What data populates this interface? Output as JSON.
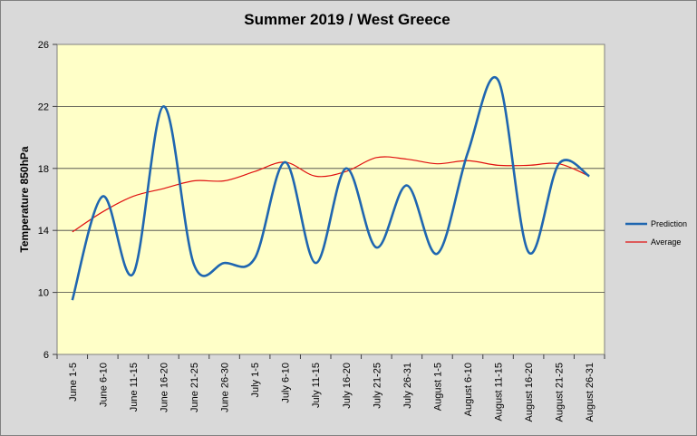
{
  "chart_data": {
    "type": "line",
    "title": "Summer 2019 / West Greece",
    "xlabel": "",
    "ylabel": "Temperature 850hPa",
    "categories": [
      "June 1-5",
      "June 6-10",
      "June 11-15",
      "June 16-20",
      "June 21-25",
      "June 26-30",
      "July 1-5",
      "July 6-10",
      "July 11-15",
      "July 16-20",
      "July 21-25",
      "July 26-31",
      "August 1-5",
      "August 6-10",
      "August 11-15",
      "August 16-20",
      "August 21-25",
      "August 26-31"
    ],
    "series": [
      {
        "name": "Prediction",
        "color": "#1f66b0",
        "values": [
          9.5,
          16.2,
          11.2,
          22.0,
          11.8,
          11.9,
          12.2,
          18.4,
          11.9,
          18.0,
          12.9,
          16.9,
          12.5,
          19.0,
          23.7,
          12.6,
          18.3,
          17.5
        ]
      },
      {
        "name": "Average",
        "color": "#e01010",
        "values": [
          13.9,
          15.2,
          16.2,
          16.7,
          17.2,
          17.2,
          17.8,
          18.4,
          17.5,
          17.8,
          18.7,
          18.6,
          18.3,
          18.5,
          18.2,
          18.2,
          18.3,
          17.5
        ]
      }
    ],
    "yticks": [
      "6",
      "10",
      "14",
      "18",
      "22",
      "26"
    ],
    "ylim": [
      6,
      26
    ],
    "grid": true,
    "legend": "right"
  }
}
